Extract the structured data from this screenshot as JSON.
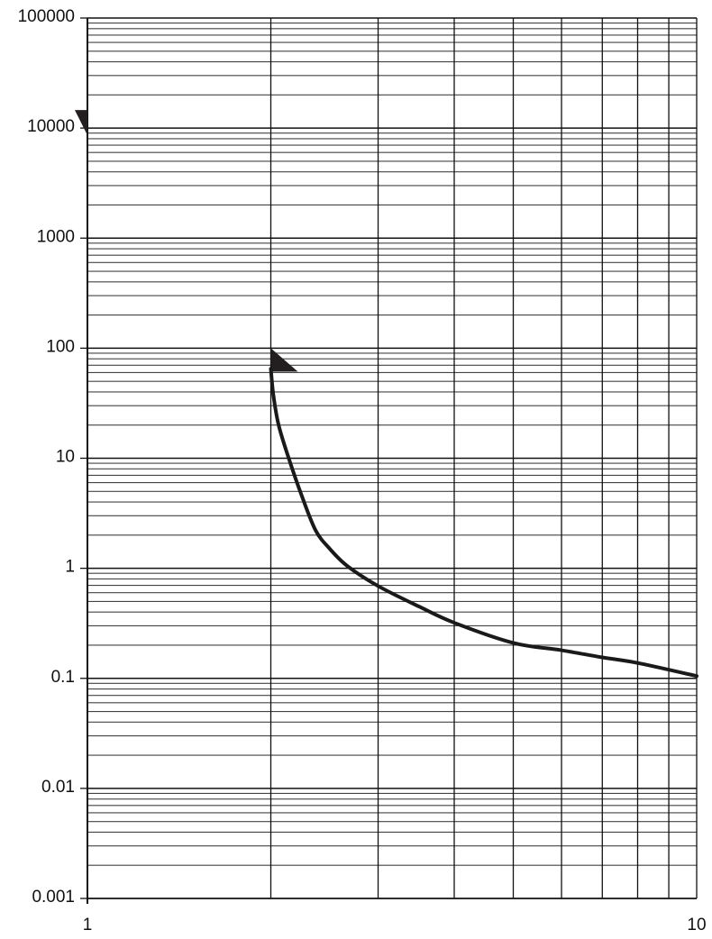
{
  "chart_data": {
    "type": "line",
    "title": "",
    "xlabel": "",
    "ylabel": "",
    "x_scale": "log",
    "y_scale": "log",
    "xlim": [
      1,
      10
    ],
    "ylim": [
      0.001,
      100000
    ],
    "grid": true,
    "x_tick_labels": [
      "1",
      "10"
    ],
    "y_tick_labels": [
      "100000",
      "10000",
      "1000",
      "100",
      "10",
      "1",
      "0.1",
      "0.01",
      "0.001"
    ],
    "y_tick_values": [
      100000,
      10000,
      1000,
      100,
      10,
      1,
      0.1,
      0.01,
      0.001
    ],
    "markers": [
      {
        "shape": "triangle",
        "at": "y-axis",
        "y": 10000
      },
      {
        "shape": "triangle",
        "at": "curve-start",
        "x": 2,
        "y": 100
      }
    ],
    "series": [
      {
        "color": "#1a1a1a",
        "x": [
          2.0,
          2.02,
          2.06,
          2.14,
          2.25,
          2.37,
          2.5,
          2.67,
          3.0,
          3.5,
          4.0,
          5.0,
          6.0,
          7.0,
          8.0,
          10.0
        ],
        "y": [
          65,
          37,
          20,
          10,
          4.5,
          2.2,
          1.5,
          1.05,
          0.69,
          0.45,
          0.32,
          0.21,
          0.18,
          0.155,
          0.138,
          0.105
        ]
      }
    ]
  }
}
